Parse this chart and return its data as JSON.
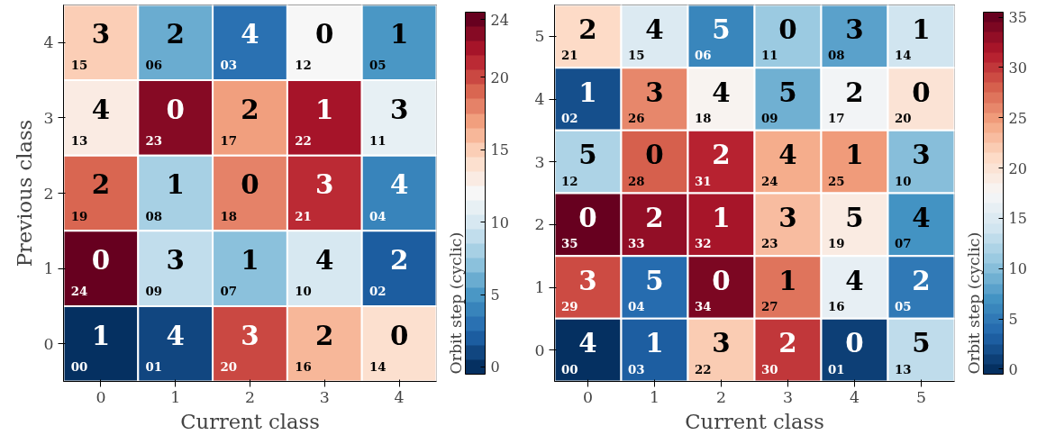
{
  "chart_data": [
    {
      "type": "heatmap",
      "xlabel": "Current class",
      "ylabel": "Previous class",
      "clabel": "Orbit step (cyclic)",
      "categories": [
        "0",
        "1",
        "2",
        "3",
        "4"
      ],
      "y_categories": [
        "4",
        "3",
        "2",
        "1",
        "0"
      ],
      "cells": [
        [
          15,
          6,
          3,
          12,
          5
        ],
        [
          13,
          23,
          17,
          22,
          11
        ],
        [
          19,
          8,
          18,
          21,
          4
        ],
        [
          24,
          9,
          7,
          10,
          2
        ],
        [
          0,
          1,
          20,
          16,
          14
        ]
      ],
      "cell_labels": [
        [
          "3\n15",
          "2\n06",
          "4\n03",
          "0\n12",
          "1\n05"
        ],
        [
          "4\n13",
          "0\n23",
          "2\n17",
          "1\n22",
          "3\n11"
        ],
        [
          "2\n19",
          "1\n08",
          "0\n18",
          "3\n21",
          "4\n04"
        ],
        [
          "0\n24",
          "3\n09",
          "1\n07",
          "4\n10",
          "2\n02"
        ],
        [
          "1\n00",
          "4\n01",
          "3\n20",
          "2\n16",
          "0\n14"
        ]
      ],
      "clim": [
        -0.5,
        24.5
      ],
      "cticks": [
        0,
        5,
        10,
        15,
        20,
        24
      ]
    },
    {
      "type": "heatmap",
      "xlabel": "Current class",
      "clabel": "Orbit step (cyclic)",
      "categories": [
        "0",
        "1",
        "2",
        "3",
        "4",
        "5"
      ],
      "y_categories": [
        "5",
        "4",
        "3",
        "2",
        "1",
        "0"
      ],
      "cells": [
        [
          21,
          15,
          6,
          11,
          8,
          14
        ],
        [
          2,
          26,
          18,
          9,
          17,
          20
        ],
        [
          12,
          28,
          31,
          24,
          25,
          10
        ],
        [
          35,
          33,
          32,
          23,
          19,
          7
        ],
        [
          29,
          4,
          34,
          27,
          16,
          5
        ],
        [
          0,
          3,
          22,
          30,
          1,
          13
        ]
      ],
      "cell_labels": [
        [
          "2\n21",
          "4\n15",
          "5\n06",
          "0\n11",
          "3\n08",
          "1\n14"
        ],
        [
          "1\n02",
          "3\n26",
          "4\n18",
          "5\n09",
          "2\n17",
          "0\n20"
        ],
        [
          "5\n12",
          "0\n28",
          "2\n31",
          "4\n24",
          "1\n25",
          "3\n10"
        ],
        [
          "0\n35",
          "2\n33",
          "1\n32",
          "3\n23",
          "5\n19",
          "4\n07"
        ],
        [
          "3\n29",
          "5\n04",
          "0\n34",
          "1\n27",
          "4\n16",
          "2\n05"
        ],
        [
          "4\n00",
          "1\n03",
          "3\n22",
          "2\n30",
          "0\n01",
          "5\n13"
        ]
      ],
      "clim": [
        -0.5,
        35.5
      ],
      "cticks": [
        0,
        5,
        10,
        15,
        20,
        25,
        30,
        35
      ]
    }
  ]
}
